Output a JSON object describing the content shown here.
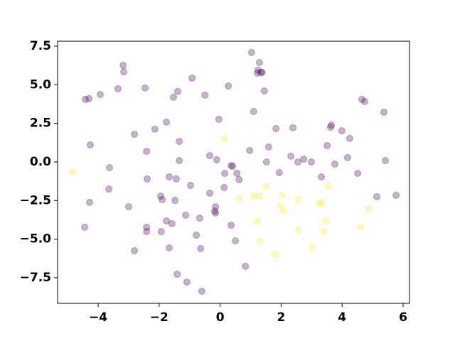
{
  "chart_data": {
    "type": "scatter",
    "xlim": [
      -5.33,
      6.21
    ],
    "ylim": [
      -9.16,
      7.82
    ],
    "xticks": [
      {
        "value": -4,
        "label": "−4"
      },
      {
        "value": -2,
        "label": "−2"
      },
      0,
      2,
      4,
      6
    ],
    "yticks": [
      {
        "value": -7.5,
        "label": "−7.5"
      },
      {
        "value": -5,
        "label": "−5.0"
      },
      {
        "value": -2.5,
        "label": "−2.5"
      },
      {
        "value": 0,
        "label": "0.0"
      },
      2.5,
      {
        "value": 5,
        "label": "5.0"
      },
      7.5
    ],
    "opacity": 0.3,
    "series": [
      {
        "color": "#440154",
        "x": [
          1.03,
          1.29,
          1.24,
          1.34,
          1.22,
          1.38,
          -3.18,
          -3.16,
          -0.92,
          1.45,
          0.27,
          -3.93,
          -4.42,
          -4.3,
          -3.35,
          -2.46,
          -1.39,
          -1.53,
          -0.5,
          1.1,
          -0.04,
          4.65,
          4.74,
          5.37,
          3.62,
          3.65,
          1.83,
          2.39,
          3.99,
          4.25,
          3.51,
          -2.81,
          -2.14,
          -1.76,
          -4.26,
          -2.41,
          -1.34,
          0.97,
          1.59,
          2.32,
          2.74,
          2.55,
          1.52,
          -1.34,
          -0.34,
          -0.11,
          -3.63,
          -2.39,
          -1.67,
          -1.44,
          -0.97,
          0.15,
          0.36,
          0.41,
          0.55,
          0.62,
          0.13,
          -0.34,
          -3.65,
          -4.28,
          -1.95,
          -1.9,
          -1.48,
          -3.0,
          1.94,
          3.32,
          4.51,
          5.14,
          5.77,
          5.42,
          4.18,
          3.76,
          2.99,
          -1.13,
          -0.67,
          -0.15,
          -0.18,
          -0.15,
          -2.41,
          -2.41,
          -4.44,
          -1.76,
          -1.58,
          -1.93,
          -0.78,
          0.36,
          0.5,
          -1.67,
          -2.81,
          -0.64,
          0.83,
          -1.41,
          -1.09,
          -0.6
        ],
        "values": [
          7.09,
          6.44,
          5.94,
          5.8,
          5.75,
          5.8,
          6.26,
          5.84,
          5.43,
          4.6,
          4.92,
          4.37,
          4.05,
          4.1,
          4.74,
          4.79,
          4.56,
          4.19,
          4.33,
          3.27,
          2.76,
          4.05,
          3.91,
          3.22,
          2.25,
          2.39,
          2.16,
          2.21,
          2.02,
          1.52,
          1.06,
          1.79,
          2.12,
          2.58,
          1.1,
          0.69,
          1.33,
          0.74,
          0.97,
          0.37,
          0.18,
          0.0,
          0.0,
          0.09,
          0.41,
          0.14,
          -0.37,
          -1.1,
          -0.97,
          -1.1,
          -1.52,
          -0.74,
          -0.23,
          -0.28,
          -0.74,
          -1.15,
          -1.66,
          -2.02,
          -1.75,
          -2.62,
          -2.21,
          -2.44,
          -2.49,
          -2.9,
          -0.69,
          -0.97,
          -0.74,
          -2.25,
          -2.16,
          0.09,
          0.28,
          -0.14,
          0.0,
          -3.45,
          -3.64,
          -2.9,
          -3.18,
          -3.31,
          -4.23,
          -4.51,
          -4.23,
          -3.82,
          -4.0,
          -4.51,
          -4.74,
          -4.1,
          -5.11,
          -5.57,
          -5.75,
          -5.61,
          -6.76,
          -7.27,
          -7.78,
          -8.38
        ]
      },
      {
        "color": "#fde725",
        "x": [
          -4.84,
          0.13,
          0.64,
          1.1,
          1.27,
          1.5,
          2.04,
          2.56,
          1.97,
          2.08,
          1.22,
          1.31,
          1.8,
          3.53,
          3.25,
          3.34,
          3.46,
          3.39,
          3.02,
          2.57,
          4.62,
          4.86
        ],
        "values": [
          -0.64,
          1.52,
          -2.35,
          -2.21,
          -2.21,
          -1.56,
          -2.16,
          -2.44,
          -2.81,
          -3.13,
          -3.82,
          -5.15,
          -5.98,
          -1.56,
          -2.72,
          -2.62,
          -3.82,
          -4.51,
          -5.52,
          -4.42,
          -4.23,
          -3.04
        ]
      }
    ]
  }
}
